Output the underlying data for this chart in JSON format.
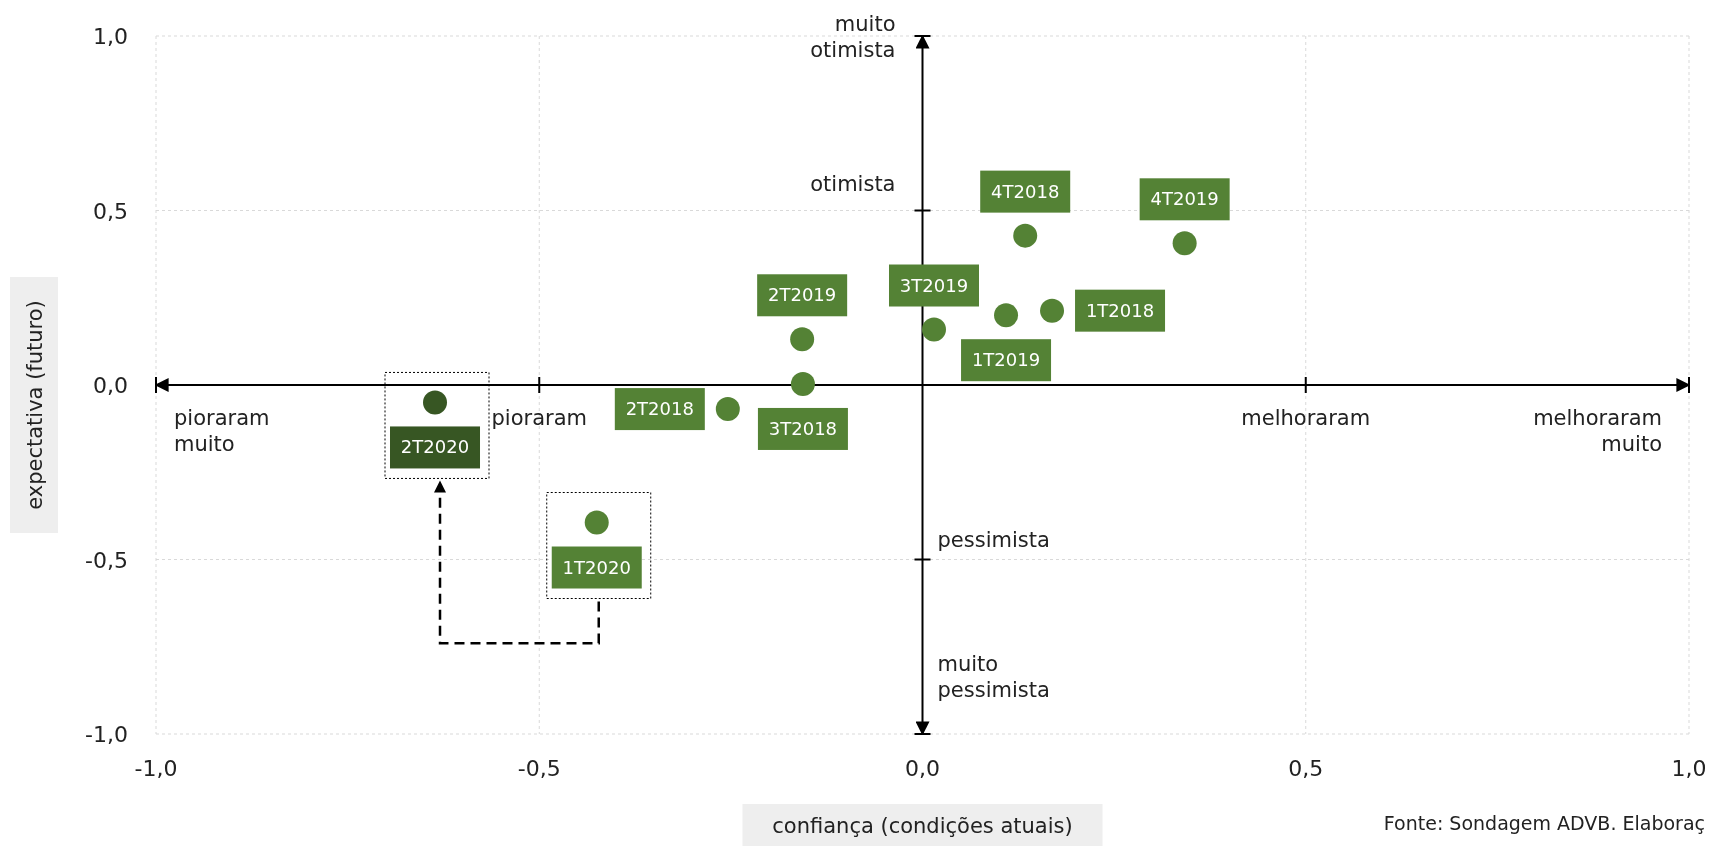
{
  "chart_data": {
    "type": "scatter",
    "xlabel": "confiança (condições atuais)",
    "ylabel": "expectativa (futuro)",
    "x": [
      0.169,
      -0.254,
      -0.156,
      0.134,
      0.109,
      -0.157,
      0.015,
      0.342,
      -0.425,
      -0.636
    ],
    "values": [
      0.213,
      -0.069,
      0.003,
      0.428,
      0.2,
      0.131,
      0.159,
      0.406,
      -0.394,
      -0.05
    ],
    "colors": [
      "#548235",
      "#548235",
      "#548235",
      "#548235",
      "#548235",
      "#548235",
      "#548235",
      "#548235",
      "#548235",
      "#375623"
    ],
    "value_labels": [
      "1T2018",
      "2T2018",
      "3T2018",
      "4T2018",
      "1T2019",
      "2T2019",
      "3T2019",
      "4T2019",
      "1T2020",
      "2T2020"
    ],
    "marker": "circle",
    "grid": true,
    "xlim": [
      -1,
      1
    ],
    "ylim": [
      -1,
      1
    ],
    "xticks": [
      {
        "value": -1,
        "label": "-1,0"
      },
      {
        "value": -0.5,
        "label": "-0,5"
      },
      {
        "value": 0,
        "label": "0,0"
      },
      {
        "value": 0.5,
        "label": "0,5"
      },
      {
        "value": 1,
        "label": "1,0"
      }
    ],
    "yticks": [
      {
        "value": -1,
        "label": "-1,0"
      },
      {
        "value": -0.5,
        "label": "-0,5"
      },
      {
        "value": 0,
        "label": "0,0"
      },
      {
        "value": 0.5,
        "label": "0,5"
      },
      {
        "value": 1,
        "label": "1,0"
      }
    ],
    "annotations": [
      "pioraram\nmuito",
      "pioraram",
      "melhoraram",
      "melhoraram\nmuito",
      "muito\notimista",
      "otimista",
      "pessimista",
      "muito\npessimista",
      "Fonte: Sondagem ADVB. Elaboraç"
    ]
  }
}
